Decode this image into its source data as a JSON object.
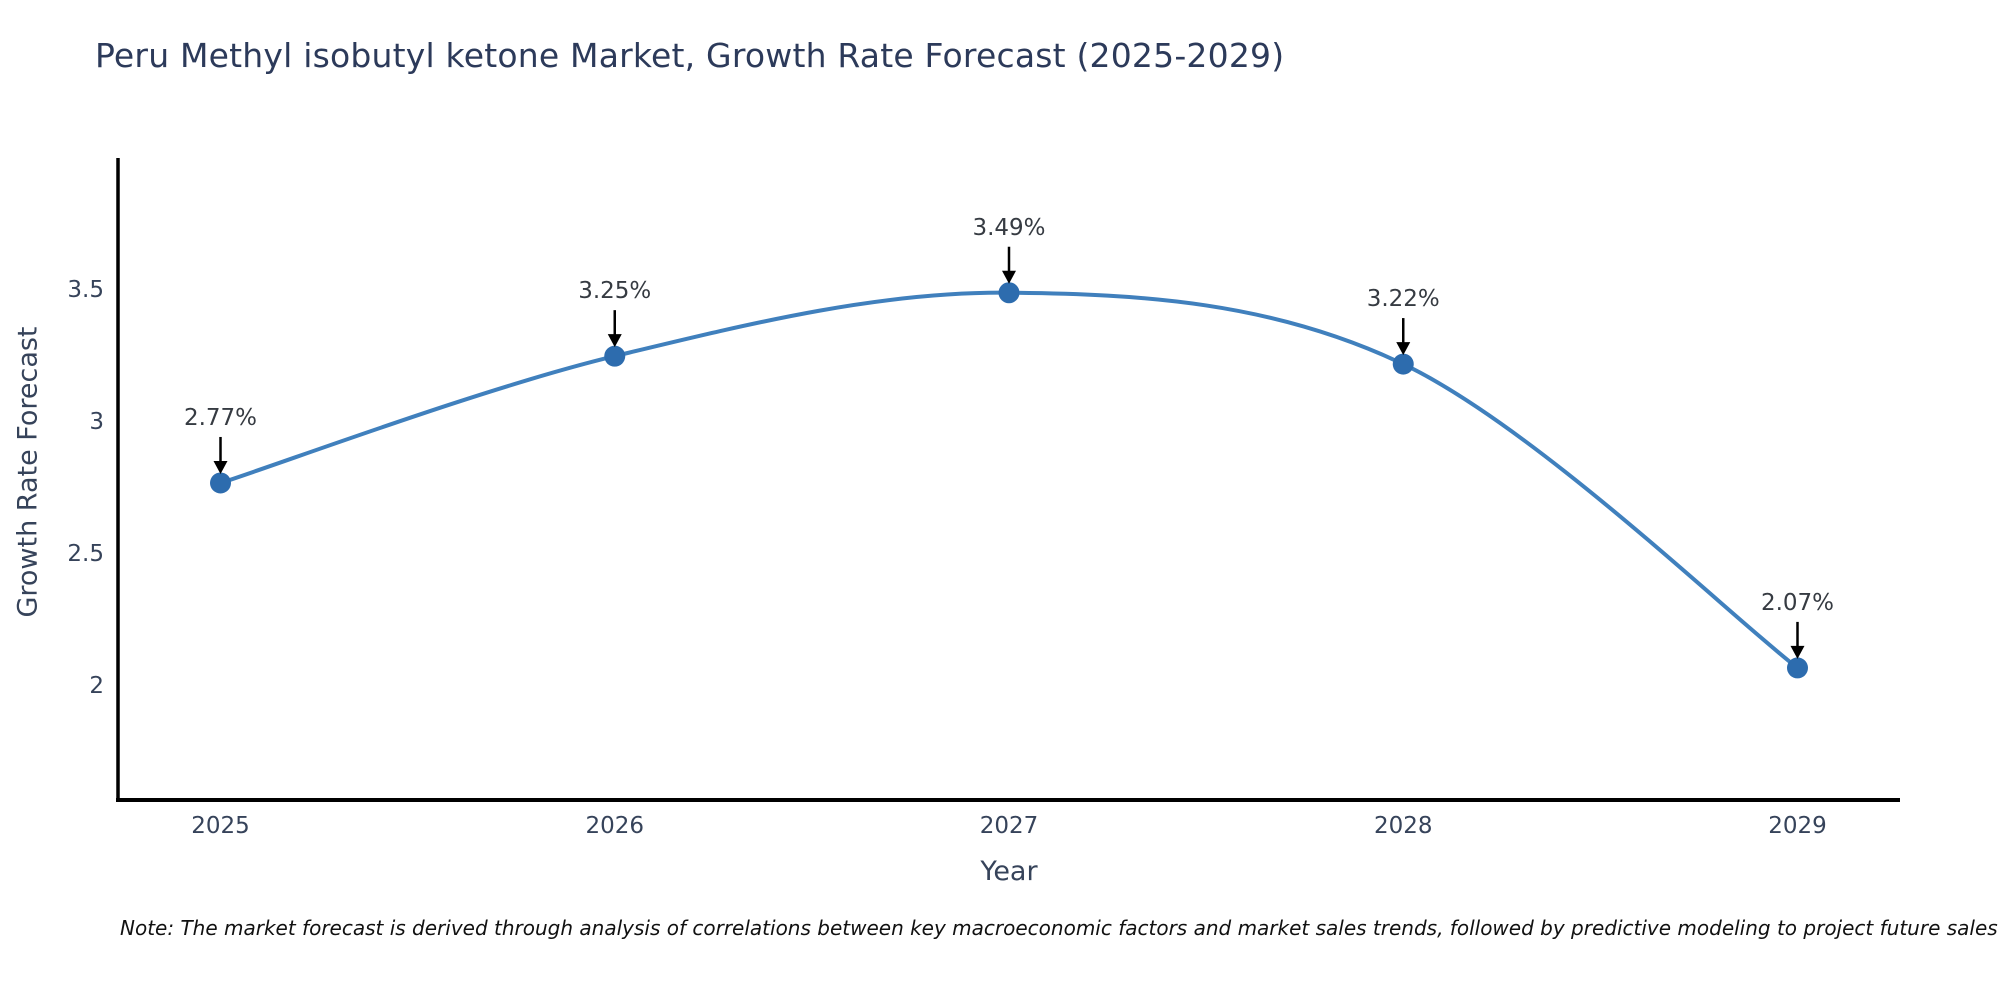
{
  "page": {
    "background_color": "#ffffff"
  },
  "header": {
    "title": "Peru Methyl isobutyl ketone Market, Growth Rate Forecast (2025-2029)"
  },
  "footnote": {
    "text": "Note: The market forecast is derived through analysis of correlations between key macroeconomic factors and market sales trends, followed by predictive modeling to project future sales"
  },
  "chart_data": {
    "type": "line",
    "title": "Peru Methyl isobutyl ketone Market, Growth Rate Forecast (2025-2029)",
    "xlabel": "Year",
    "ylabel": "Growth Rate Forecast",
    "x": [
      2025,
      2026,
      2027,
      2028,
      2029
    ],
    "values": [
      2.77,
      3.25,
      3.49,
      3.22,
      2.07
    ],
    "point_labels": [
      "2.77%",
      "3.25%",
      "3.49%",
      "3.22%",
      "2.07%"
    ],
    "xticks": [
      2025,
      2026,
      2027,
      2028,
      2029
    ],
    "xtick_labels": [
      "2025",
      "2026",
      "2027",
      "2028",
      "2029"
    ],
    "yticks": [
      2,
      2.5,
      3,
      3.5
    ],
    "ytick_labels": [
      "2",
      "2.5",
      "3",
      "3.5"
    ],
    "xlim": [
      2024.74,
      2029.26
    ],
    "ylim": [
      1.57,
      4.0
    ],
    "grid": false,
    "legend": "none",
    "smooth": true,
    "annotations_have_arrows": true,
    "colors": {
      "line": "#4080bd",
      "marker": "#2d6cae",
      "axis": "#000000",
      "title_text": "#2c3a5a",
      "tick_text": "#36435a",
      "annotation_text": "#363b42",
      "arrow": "#000000"
    }
  }
}
